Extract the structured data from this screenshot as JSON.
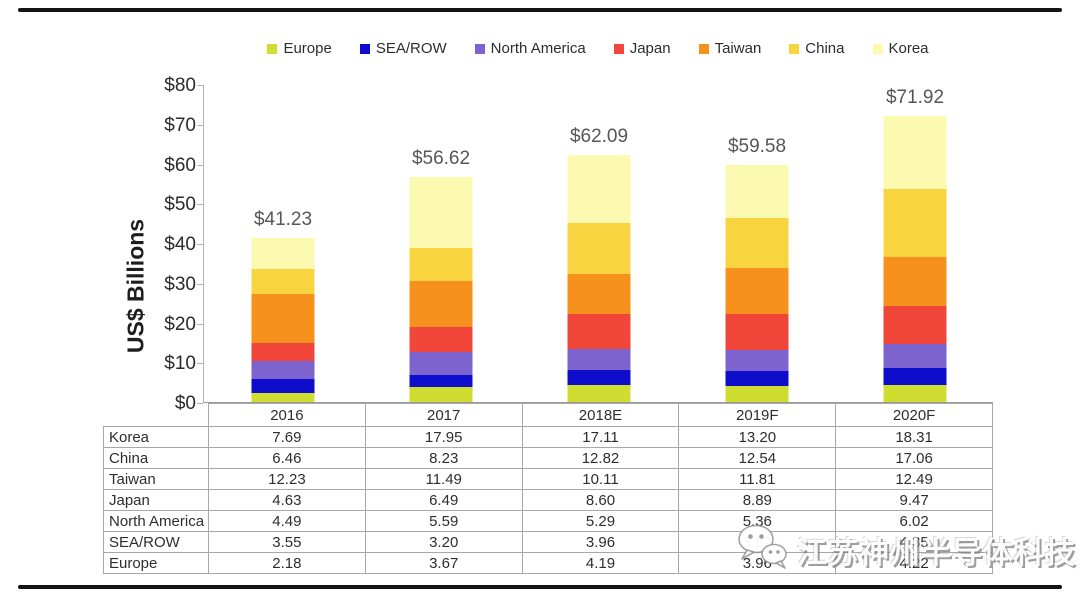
{
  "watermark": {
    "text": "江苏神州半导体科技",
    "icon": "wechat-logo-icon"
  },
  "chart_data": {
    "type": "bar",
    "stacked": true,
    "title": "",
    "xlabel": "",
    "ylabel": "US$ Billions",
    "ylim": [
      0,
      80
    ],
    "ytick_step": 10,
    "ytick_prefix": "$",
    "grid": false,
    "legend_position": "top",
    "categories": [
      "2016",
      "2017",
      "2018E",
      "2019F",
      "2020F"
    ],
    "totals": [
      41.23,
      56.62,
      62.09,
      59.58,
      71.92
    ],
    "total_labels": [
      "$41.23",
      "$56.62",
      "$62.09",
      "$59.58",
      "$71.92"
    ],
    "series": [
      {
        "name": "Europe",
        "color": "#cedd30",
        "values": [
          "2.18",
          "3.67",
          "4.19",
          "3.96",
          "4.22"
        ]
      },
      {
        "name": "SEA/ROW",
        "color": "#0d0dcb",
        "values": [
          "3.55",
          "3.20",
          "3.96",
          "3.82",
          "4.35"
        ]
      },
      {
        "name": "North America",
        "color": "#7c63cd",
        "values": [
          "4.49",
          "5.59",
          "5.29",
          "5.36",
          "6.02"
        ]
      },
      {
        "name": "Japan",
        "color": "#f0473a",
        "values": [
          "4.63",
          "6.49",
          "8.60",
          "8.89",
          "9.47"
        ]
      },
      {
        "name": "Taiwan",
        "color": "#f7911d",
        "values": [
          "12.23",
          "11.49",
          "10.11",
          "11.81",
          "12.49"
        ]
      },
      {
        "name": "China",
        "color": "#f9d441",
        "values": [
          "6.46",
          "8.23",
          "12.82",
          "12.54",
          "17.06"
        ]
      },
      {
        "name": "Korea",
        "color": "#fbfab0",
        "values": [
          "7.69",
          "17.95",
          "17.11",
          "13.20",
          "18.31"
        ]
      }
    ],
    "table_row_order": [
      "Korea",
      "China",
      "Taiwan",
      "Japan",
      "North America",
      "SEA/ROW",
      "Europe"
    ]
  }
}
